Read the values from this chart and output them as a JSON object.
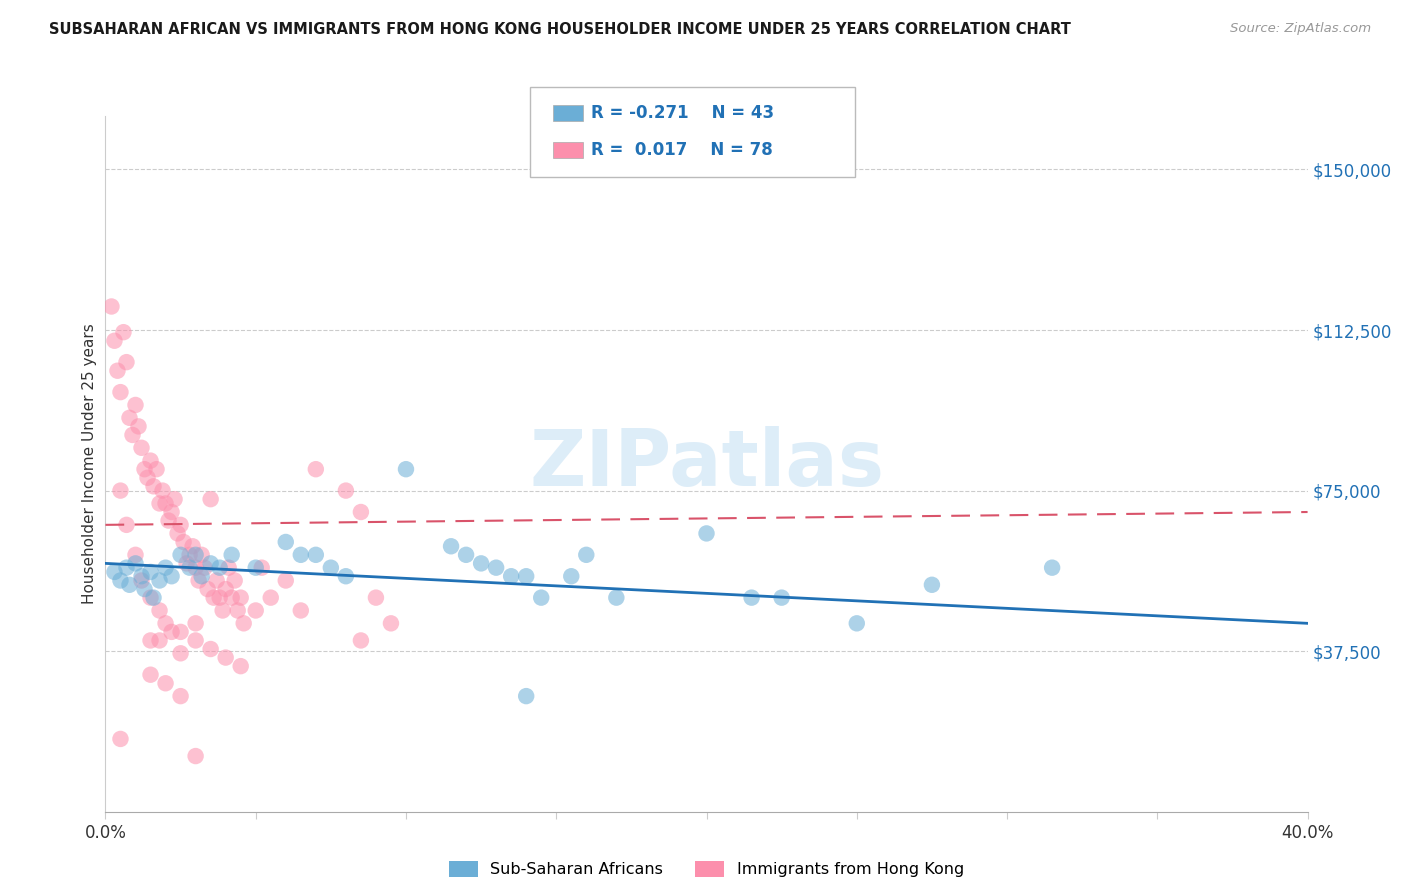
{
  "title": "SUBSAHARAN AFRICAN VS IMMIGRANTS FROM HONG KONG HOUSEHOLDER INCOME UNDER 25 YEARS CORRELATION CHART",
  "source": "Source: ZipAtlas.com",
  "ylabel": "Householder Income Under 25 years",
  "xlim": [
    0.0,
    0.4
  ],
  "ylim": [
    0,
    162500
  ],
  "xticks": [
    0.0,
    0.05,
    0.1,
    0.15,
    0.2,
    0.25,
    0.3,
    0.35,
    0.4
  ],
  "ytick_positions": [
    37500,
    75000,
    112500,
    150000
  ],
  "ytick_labels": [
    "$37,500",
    "$75,000",
    "$112,500",
    "$150,000"
  ],
  "blue_R": "-0.271",
  "blue_N": "43",
  "pink_R": "0.017",
  "pink_N": "78",
  "legend_label_blue": "Sub-Saharan Africans",
  "legend_label_pink": "Immigrants from Hong Kong",
  "watermark": "ZIPatlas",
  "blue_scatter": [
    [
      0.003,
      56000
    ],
    [
      0.005,
      54000
    ],
    [
      0.007,
      57000
    ],
    [
      0.008,
      53000
    ],
    [
      0.01,
      58000
    ],
    [
      0.012,
      55000
    ],
    [
      0.013,
      52000
    ],
    [
      0.015,
      56000
    ],
    [
      0.016,
      50000
    ],
    [
      0.018,
      54000
    ],
    [
      0.02,
      57000
    ],
    [
      0.022,
      55000
    ],
    [
      0.025,
      60000
    ],
    [
      0.028,
      57000
    ],
    [
      0.03,
      60000
    ],
    [
      0.032,
      55000
    ],
    [
      0.035,
      58000
    ],
    [
      0.038,
      57000
    ],
    [
      0.042,
      60000
    ],
    [
      0.05,
      57000
    ],
    [
      0.06,
      63000
    ],
    [
      0.065,
      60000
    ],
    [
      0.07,
      60000
    ],
    [
      0.075,
      57000
    ],
    [
      0.08,
      55000
    ],
    [
      0.1,
      80000
    ],
    [
      0.115,
      62000
    ],
    [
      0.12,
      60000
    ],
    [
      0.125,
      58000
    ],
    [
      0.13,
      57000
    ],
    [
      0.135,
      55000
    ],
    [
      0.14,
      55000
    ],
    [
      0.145,
      50000
    ],
    [
      0.155,
      55000
    ],
    [
      0.16,
      60000
    ],
    [
      0.17,
      50000
    ],
    [
      0.2,
      65000
    ],
    [
      0.215,
      50000
    ],
    [
      0.225,
      50000
    ],
    [
      0.25,
      44000
    ],
    [
      0.275,
      53000
    ],
    [
      0.315,
      57000
    ],
    [
      0.14,
      27000
    ]
  ],
  "pink_scatter": [
    [
      0.002,
      118000
    ],
    [
      0.003,
      110000
    ],
    [
      0.004,
      103000
    ],
    [
      0.005,
      98000
    ],
    [
      0.006,
      112000
    ],
    [
      0.007,
      105000
    ],
    [
      0.008,
      92000
    ],
    [
      0.009,
      88000
    ],
    [
      0.01,
      95000
    ],
    [
      0.011,
      90000
    ],
    [
      0.012,
      85000
    ],
    [
      0.013,
      80000
    ],
    [
      0.014,
      78000
    ],
    [
      0.015,
      82000
    ],
    [
      0.016,
      76000
    ],
    [
      0.017,
      80000
    ],
    [
      0.018,
      72000
    ],
    [
      0.019,
      75000
    ],
    [
      0.02,
      72000
    ],
    [
      0.021,
      68000
    ],
    [
      0.022,
      70000
    ],
    [
      0.023,
      73000
    ],
    [
      0.024,
      65000
    ],
    [
      0.025,
      67000
    ],
    [
      0.026,
      63000
    ],
    [
      0.027,
      58000
    ],
    [
      0.028,
      60000
    ],
    [
      0.029,
      62000
    ],
    [
      0.03,
      57000
    ],
    [
      0.031,
      54000
    ],
    [
      0.032,
      60000
    ],
    [
      0.033,
      57000
    ],
    [
      0.034,
      52000
    ],
    [
      0.035,
      73000
    ],
    [
      0.036,
      50000
    ],
    [
      0.037,
      54000
    ],
    [
      0.038,
      50000
    ],
    [
      0.039,
      47000
    ],
    [
      0.04,
      52000
    ],
    [
      0.041,
      57000
    ],
    [
      0.042,
      50000
    ],
    [
      0.043,
      54000
    ],
    [
      0.044,
      47000
    ],
    [
      0.045,
      50000
    ],
    [
      0.046,
      44000
    ],
    [
      0.05,
      47000
    ],
    [
      0.052,
      57000
    ],
    [
      0.055,
      50000
    ],
    [
      0.06,
      54000
    ],
    [
      0.065,
      47000
    ],
    [
      0.07,
      80000
    ],
    [
      0.08,
      75000
    ],
    [
      0.085,
      70000
    ],
    [
      0.09,
      50000
    ],
    [
      0.095,
      44000
    ],
    [
      0.015,
      40000
    ],
    [
      0.018,
      40000
    ],
    [
      0.022,
      42000
    ],
    [
      0.025,
      37000
    ],
    [
      0.03,
      44000
    ],
    [
      0.005,
      75000
    ],
    [
      0.007,
      67000
    ],
    [
      0.01,
      60000
    ],
    [
      0.012,
      54000
    ],
    [
      0.015,
      50000
    ],
    [
      0.018,
      47000
    ],
    [
      0.02,
      44000
    ],
    [
      0.025,
      42000
    ],
    [
      0.03,
      40000
    ],
    [
      0.035,
      38000
    ],
    [
      0.04,
      36000
    ],
    [
      0.045,
      34000
    ],
    [
      0.015,
      32000
    ],
    [
      0.02,
      30000
    ],
    [
      0.025,
      27000
    ],
    [
      0.005,
      17000
    ],
    [
      0.03,
      13000
    ],
    [
      0.085,
      40000
    ]
  ],
  "blue_line_x": [
    0.0,
    0.4
  ],
  "blue_line_y": [
    58000,
    44000
  ],
  "pink_line_x": [
    0.0,
    0.4
  ],
  "pink_line_y": [
    67000,
    70000
  ],
  "bg_color": "#ffffff",
  "blue_color": "#6baed6",
  "pink_color": "#fc8fac",
  "blue_line_color": "#2171b5",
  "pink_line_color": "#d9536a",
  "grid_color": "#cccccc"
}
